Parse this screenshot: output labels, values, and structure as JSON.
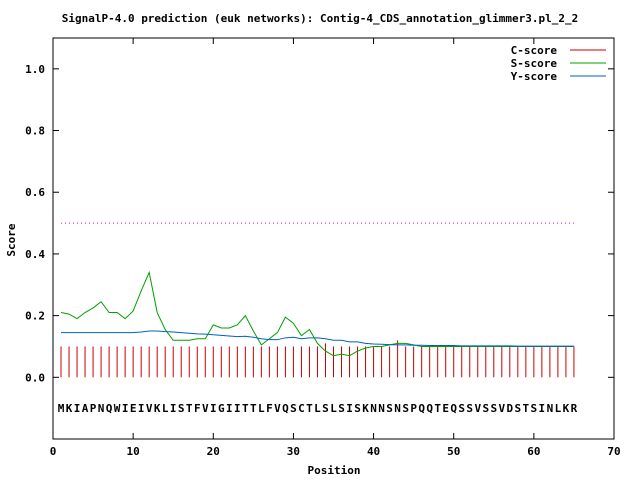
{
  "chart_data": {
    "type": "line",
    "title": "SignalP-4.0 prediction (euk networks): Contig-4_CDS_annotation_glimmer3.pl_2_2",
    "xlabel": "Position",
    "ylabel": "Score",
    "xlim": [
      0,
      70
    ],
    "ylim": [
      -0.2,
      1.1
    ],
    "xticks": [
      0,
      10,
      20,
      30,
      40,
      50,
      60,
      70
    ],
    "xtick_labels": [
      "0",
      "10",
      "20",
      "30",
      "40",
      "50",
      "60",
      "70"
    ],
    "yticks": [
      0.0,
      0.2,
      0.4,
      0.6,
      0.8,
      1.0
    ],
    "ytick_labels": [
      "0.0",
      "0.2",
      "0.4",
      "0.6",
      "0.8",
      "1.0"
    ],
    "grid": false,
    "legend_position": "top-right",
    "threshold": 0.5,
    "sequence": "MKIAPNQWIEIVKLISTFVIGIITTLFVQSCTLSLSISKNNSNSPQQTEQSSVSSVDSTSINLKR",
    "series": [
      {
        "name": "C-score",
        "color": "#cc0000",
        "style": "impulses",
        "x": [
          1,
          2,
          3,
          4,
          5,
          6,
          7,
          8,
          9,
          10,
          11,
          12,
          13,
          14,
          15,
          16,
          17,
          18,
          19,
          20,
          21,
          22,
          23,
          24,
          25,
          26,
          27,
          28,
          29,
          30,
          31,
          32,
          33,
          34,
          35,
          36,
          37,
          38,
          39,
          40,
          41,
          42,
          43,
          44,
          45,
          46,
          47,
          48,
          49,
          50,
          51,
          52,
          53,
          54,
          55,
          56,
          57,
          58,
          59,
          60,
          61,
          62,
          63,
          64,
          65
        ],
        "values": [
          0.1,
          0.1,
          0.1,
          0.1,
          0.1,
          0.1,
          0.1,
          0.1,
          0.1,
          0.1,
          0.1,
          0.1,
          0.1,
          0.1,
          0.1,
          0.1,
          0.1,
          0.1,
          0.1,
          0.1,
          0.1,
          0.1,
          0.1,
          0.1,
          0.1,
          0.1,
          0.1,
          0.1,
          0.1,
          0.1,
          0.1,
          0.1,
          0.1,
          0.11,
          0.1,
          0.1,
          0.1,
          0.1,
          0.1,
          0.1,
          0.1,
          0.1,
          0.12,
          0.1,
          0.1,
          0.1,
          0.1,
          0.1,
          0.1,
          0.1,
          0.1,
          0.1,
          0.1,
          0.1,
          0.1,
          0.1,
          0.1,
          0.1,
          0.1,
          0.1,
          0.1,
          0.1,
          0.1,
          0.1,
          0.1
        ]
      },
      {
        "name": "S-score",
        "color": "#00a000",
        "style": "line",
        "x": [
          1,
          2,
          3,
          4,
          5,
          6,
          7,
          8,
          9,
          10,
          11,
          12,
          13,
          14,
          15,
          16,
          17,
          18,
          19,
          20,
          21,
          22,
          23,
          24,
          25,
          26,
          27,
          28,
          29,
          30,
          31,
          32,
          33,
          34,
          35,
          36,
          37,
          38,
          39,
          40,
          41,
          42,
          43,
          44,
          45,
          46,
          47,
          48,
          49,
          50,
          51,
          52,
          53,
          54,
          55,
          56,
          57,
          58,
          59,
          60,
          61,
          62,
          63,
          64,
          65
        ],
        "values": [
          0.21,
          0.205,
          0.19,
          0.21,
          0.225,
          0.245,
          0.21,
          0.21,
          0.19,
          0.215,
          0.28,
          0.34,
          0.21,
          0.155,
          0.12,
          0.12,
          0.12,
          0.125,
          0.125,
          0.17,
          0.16,
          0.16,
          0.17,
          0.2,
          0.15,
          0.105,
          0.125,
          0.145,
          0.195,
          0.175,
          0.135,
          0.155,
          0.11,
          0.085,
          0.07,
          0.075,
          0.07,
          0.085,
          0.095,
          0.1,
          0.1,
          0.105,
          0.11,
          0.11,
          0.105,
          0.1,
          0.1,
          0.1,
          0.1,
          0.1,
          0.1,
          0.1,
          0.1,
          0.1,
          0.1,
          0.1,
          0.1,
          0.1,
          0.1,
          0.1,
          0.1,
          0.1,
          0.1,
          0.1,
          0.1
        ]
      },
      {
        "name": "Y-score",
        "color": "#0060c0",
        "style": "line",
        "x": [
          1,
          2,
          3,
          4,
          5,
          6,
          7,
          8,
          9,
          10,
          11,
          12,
          13,
          14,
          15,
          16,
          17,
          18,
          19,
          20,
          21,
          22,
          23,
          24,
          25,
          26,
          27,
          28,
          29,
          30,
          31,
          32,
          33,
          34,
          35,
          36,
          37,
          38,
          39,
          40,
          41,
          42,
          43,
          44,
          45,
          46,
          47,
          48,
          49,
          50,
          51,
          52,
          53,
          54,
          55,
          56,
          57,
          58,
          59,
          60,
          61,
          62,
          63,
          64,
          65
        ],
        "values": [
          0.145,
          0.145,
          0.145,
          0.145,
          0.145,
          0.145,
          0.145,
          0.145,
          0.145,
          0.145,
          0.147,
          0.15,
          0.15,
          0.148,
          0.147,
          0.145,
          0.143,
          0.141,
          0.14,
          0.138,
          0.136,
          0.134,
          0.132,
          0.133,
          0.13,
          0.125,
          0.122,
          0.122,
          0.128,
          0.13,
          0.125,
          0.128,
          0.128,
          0.125,
          0.12,
          0.12,
          0.115,
          0.115,
          0.11,
          0.108,
          0.107,
          0.106,
          0.105,
          0.105,
          0.104,
          0.104,
          0.103,
          0.103,
          0.103,
          0.103,
          0.102,
          0.102,
          0.102,
          0.102,
          0.102,
          0.102,
          0.102,
          0.101,
          0.101,
          0.101,
          0.101,
          0.101,
          0.101,
          0.101,
          0.101
        ]
      }
    ]
  }
}
